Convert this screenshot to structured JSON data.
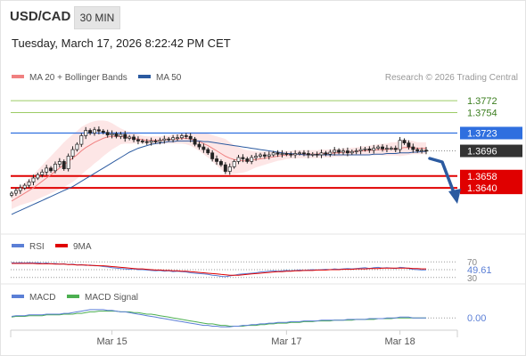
{
  "header": {
    "symbol": "USD/CAD",
    "timeframe": "30 MIN",
    "datetime": "Tuesday, March 17, 2026 8:22:42 PM CET"
  },
  "legend": {
    "bollinger_label": "MA 20 + Bollinger Bands",
    "ma50_label": "MA 50",
    "credit": "Research © 2026 Trading Central"
  },
  "colors": {
    "up_candle": "#ffffff",
    "down_candle": "#222222",
    "ma20": "#f08080",
    "band_fill": "#fde0e0",
    "ma50": "#2b5aa0",
    "resistance": "#9ccc65",
    "pivot": "#2f6fdf",
    "support": "#e00000",
    "current": "#333333",
    "rsi": "#5b7fd6",
    "rsi_ma": "#e00000",
    "macd": "#5b7fd6",
    "macd_signal": "#4caf50"
  },
  "chart_data": {
    "type": "candlestick",
    "ylim": [
      1.3585,
      1.3795
    ],
    "levels": [
      {
        "label": "1.3772",
        "value": 1.3772,
        "kind": "resistance"
      },
      {
        "label": "1.3754",
        "value": 1.3754,
        "kind": "resistance"
      },
      {
        "label": "1.3723",
        "value": 1.3723,
        "kind": "pivot"
      },
      {
        "label": "1.3658",
        "value": 1.3658,
        "kind": "support"
      },
      {
        "label": "1.3640",
        "value": 1.364,
        "kind": "support"
      }
    ],
    "current_price": "1.3696",
    "x_ticks": [
      "Mar 15",
      "Mar 17",
      "Mar 18"
    ],
    "x_tick_index": [
      23,
      63,
      89
    ],
    "close": [
      1.3632,
      1.3636,
      1.364,
      1.3644,
      1.3649,
      1.3655,
      1.366,
      1.3664,
      1.367,
      1.3666,
      1.3676,
      1.368,
      1.3669,
      1.3688,
      1.3698,
      1.3706,
      1.3719,
      1.3727,
      1.3723,
      1.3728,
      1.3726,
      1.3724,
      1.372,
      1.3722,
      1.3718,
      1.3721,
      1.3715,
      1.3717,
      1.3713,
      1.3711,
      1.371,
      1.3709,
      1.3711,
      1.371,
      1.3712,
      1.3714,
      1.3713,
      1.3716,
      1.3716,
      1.3719,
      1.3718,
      1.3714,
      1.3706,
      1.3702,
      1.3698,
      1.3693,
      1.3684,
      1.368,
      1.3675,
      1.3665,
      1.3672,
      1.368,
      1.3686,
      1.3684,
      1.368,
      1.3686,
      1.3688,
      1.369,
      1.3688,
      1.369,
      1.3693,
      1.3691,
      1.3692,
      1.3691,
      1.369,
      1.3692,
      1.3693,
      1.3692,
      1.369,
      1.3691,
      1.369,
      1.3693,
      1.3691,
      1.3694,
      1.3697,
      1.3694,
      1.3696,
      1.3693,
      1.3695,
      1.3696,
      1.3698,
      1.3699,
      1.3697,
      1.37,
      1.3702,
      1.3699,
      1.37,
      1.37,
      1.3698,
      1.3712,
      1.3708,
      1.3702,
      1.3698,
      1.3696,
      1.3697,
      1.3696
    ],
    "ma20": [
      1.362,
      1.3624,
      1.3628,
      1.3632,
      1.3636,
      1.364,
      1.3645,
      1.365,
      1.3655,
      1.366,
      1.3665,
      1.367,
      1.3675,
      1.368,
      1.3685,
      1.369,
      1.3696,
      1.3701,
      1.3705,
      1.3709,
      1.3712,
      1.3715,
      1.3717,
      1.3718,
      1.3718,
      1.3718,
      1.3717,
      1.3716,
      1.3715,
      1.3714,
      1.3713,
      1.3712,
      1.3712,
      1.3712,
      1.3712,
      1.3713,
      1.3713,
      1.3714,
      1.3714,
      1.3715,
      1.3715,
      1.3714,
      1.3712,
      1.371,
      1.3707,
      1.3704,
      1.37,
      1.3696,
      1.3692,
      1.3688,
      1.3685,
      1.3683,
      1.3682,
      1.3681,
      1.3681,
      1.3682,
      1.3683,
      1.3684,
      1.3685,
      1.3686,
      1.3687,
      1.3688,
      1.3689,
      1.369,
      1.369,
      1.3691,
      1.3691,
      1.3691,
      1.3691,
      1.3691,
      1.3691,
      1.3692,
      1.3692,
      1.3692,
      1.3693,
      1.3693,
      1.3694,
      1.3694,
      1.3695,
      1.3695,
      1.3696,
      1.3696,
      1.3697,
      1.3697,
      1.3698,
      1.3698,
      1.3698,
      1.3699,
      1.3699,
      1.37,
      1.3701,
      1.3701,
      1.3701,
      1.37,
      1.37,
      1.37
    ],
    "bb_width": [
      0.0012,
      0.0013,
      0.0014,
      0.0016,
      0.0018,
      0.002,
      0.0022,
      0.0024,
      0.0026,
      0.0028,
      0.003,
      0.0032,
      0.0034,
      0.0035,
      0.0036,
      0.0036,
      0.0036,
      0.0035,
      0.0034,
      0.0032,
      0.003,
      0.0027,
      0.0024,
      0.002,
      0.0016,
      0.0012,
      0.001,
      0.0009,
      0.0008,
      0.0007,
      0.0006,
      0.0006,
      0.0006,
      0.0006,
      0.0006,
      0.0006,
      0.0006,
      0.0007,
      0.0007,
      0.0008,
      0.0009,
      0.001,
      0.0012,
      0.0014,
      0.0016,
      0.0018,
      0.002,
      0.0022,
      0.0024,
      0.0026,
      0.0024,
      0.0022,
      0.002,
      0.0018,
      0.0016,
      0.0014,
      0.0012,
      0.0011,
      0.001,
      0.0009,
      0.0008,
      0.0007,
      0.0007,
      0.0006,
      0.0006,
      0.0006,
      0.0006,
      0.0006,
      0.0006,
      0.0006,
      0.0006,
      0.0006,
      0.0006,
      0.0006,
      0.0006,
      0.0006,
      0.0006,
      0.0006,
      0.0006,
      0.0006,
      0.0007,
      0.0007,
      0.0007,
      0.0008,
      0.0008,
      0.0009,
      0.0009,
      0.001,
      0.001,
      0.0012,
      0.0012,
      0.0011,
      0.001,
      0.0009,
      0.0009,
      0.0009
    ],
    "ma50": [
      1.36,
      1.3603,
      1.3606,
      1.3609,
      1.3612,
      1.3615,
      1.3618,
      1.3621,
      1.3624,
      1.3627,
      1.363,
      1.3633,
      1.3636,
      1.3639,
      1.3642,
      1.3646,
      1.365,
      1.3654,
      1.3658,
      1.3662,
      1.3666,
      1.367,
      1.3674,
      1.3678,
      1.3682,
      1.3686,
      1.369,
      1.3694,
      1.3697,
      1.37,
      1.3702,
      1.3704,
      1.3706,
      1.3707,
      1.3708,
      1.3709,
      1.371,
      1.371,
      1.3711,
      1.3711,
      1.3711,
      1.3711,
      1.3711,
      1.3711,
      1.371,
      1.371,
      1.3709,
      1.3708,
      1.3707,
      1.3706,
      1.3705,
      1.3704,
      1.3703,
      1.3702,
      1.3701,
      1.37,
      1.3699,
      1.3698,
      1.3697,
      1.3696,
      1.3695,
      1.3694,
      1.3693,
      1.3692,
      1.3692,
      1.3691,
      1.3691,
      1.369,
      1.369,
      1.369,
      1.369,
      1.369,
      1.369,
      1.369,
      1.369,
      1.369,
      1.369,
      1.369,
      1.369,
      1.369,
      1.369,
      1.369,
      1.369,
      1.3691,
      1.3691,
      1.3691,
      1.3692,
      1.3692,
      1.3692,
      1.3693,
      1.3693,
      1.3693,
      1.3694,
      1.3694,
      1.3695,
      1.3695
    ],
    "rsi": {
      "label": "RSI",
      "ma_label": "9MA",
      "value_label": "49.61",
      "levels": [
        70,
        50,
        30
      ],
      "level_labels": [
        "70",
        "50",
        "30"
      ],
      "ylim": [
        25,
        75
      ],
      "values": [
        68,
        67,
        68,
        67,
        68,
        67,
        68,
        66,
        67,
        65,
        66,
        64,
        65,
        63,
        64,
        62,
        63,
        61,
        62,
        60,
        60,
        58,
        57,
        55,
        54,
        53,
        52,
        51,
        52,
        50,
        50,
        49,
        48,
        47,
        48,
        46,
        47,
        45,
        46,
        45,
        44,
        42,
        41,
        40,
        39,
        38,
        36,
        35,
        33,
        32,
        34,
        36,
        38,
        39,
        40,
        41,
        42,
        44,
        45,
        46,
        47,
        46,
        47,
        48,
        47,
        48,
        49,
        48,
        49,
        50,
        49,
        50,
        51,
        50,
        52,
        51,
        52,
        53,
        52,
        53,
        54,
        55,
        53,
        55,
        56,
        54,
        55,
        54,
        53,
        56,
        55,
        53,
        51,
        50,
        49,
        49.61
      ],
      "ma_values": [
        66,
        66,
        66,
        66,
        66,
        66,
        65,
        65,
        65,
        65,
        64,
        64,
        64,
        63,
        63,
        62,
        62,
        62,
        61,
        61,
        60,
        60,
        59,
        58,
        57,
        56,
        55,
        54,
        53,
        52,
        52,
        51,
        50,
        49,
        49,
        48,
        48,
        47,
        47,
        46,
        46,
        45,
        44,
        43,
        42,
        41,
        40,
        39,
        38,
        37,
        36,
        36,
        36,
        37,
        38,
        39,
        40,
        41,
        42,
        43,
        44,
        45,
        45,
        46,
        46,
        47,
        47,
        48,
        48,
        48,
        49,
        49,
        49,
        50,
        50,
        50,
        51,
        51,
        51,
        52,
        52,
        52,
        53,
        53,
        53,
        54,
        54,
        54,
        54,
        54,
        54,
        54,
        53,
        53,
        52,
        52
      ]
    },
    "macd": {
      "label": "MACD",
      "signal_label": "MACD Signal",
      "value_label": "0.00",
      "zero_label": "0.00",
      "ylim": [
        -0.0014,
        0.0018
      ],
      "values": [
        0.0002,
        0.0003,
        0.0003,
        0.0003,
        0.0004,
        0.0004,
        0.0004,
        0.0004,
        0.0005,
        0.0005,
        0.0005,
        0.0005,
        0.0006,
        0.0006,
        0.0007,
        0.0008,
        0.0009,
        0.001,
        0.0011,
        0.0011,
        0.0011,
        0.0011,
        0.001,
        0.001,
        0.0009,
        0.0008,
        0.0008,
        0.0007,
        0.0006,
        0.0005,
        0.0004,
        0.0003,
        0.0002,
        0.0001,
        0.0,
        -0.0001,
        -0.0002,
        -0.0003,
        -0.0004,
        -0.0005,
        -0.0006,
        -0.0007,
        -0.0008,
        -0.0009,
        -0.001,
        -0.001,
        -0.0011,
        -0.0011,
        -0.0012,
        -0.0012,
        -0.0012,
        -0.0011,
        -0.0011,
        -0.001,
        -0.001,
        -0.0009,
        -0.0009,
        -0.0008,
        -0.0008,
        -0.0007,
        -0.0007,
        -0.0006,
        -0.0006,
        -0.0006,
        -0.0005,
        -0.0005,
        -0.0005,
        -0.0004,
        -0.0004,
        -0.0004,
        -0.0004,
        -0.0003,
        -0.0003,
        -0.0003,
        -0.0003,
        -0.0003,
        -0.0003,
        -0.0002,
        -0.0002,
        -0.0002,
        -0.0002,
        -0.0002,
        -0.0001,
        -0.0001,
        -0.0001,
        -0.0001,
        0.0,
        0.0,
        0.0,
        0.0001,
        0.0001,
        0.0001,
        0.0,
        0.0,
        0.0,
        0.0
      ],
      "signal": [
        0.0001,
        0.0002,
        0.0002,
        0.0002,
        0.0003,
        0.0003,
        0.0003,
        0.0003,
        0.0004,
        0.0004,
        0.0004,
        0.0004,
        0.0005,
        0.0005,
        0.0005,
        0.0006,
        0.0006,
        0.0007,
        0.0008,
        0.0008,
        0.0009,
        0.0009,
        0.0009,
        0.0009,
        0.0009,
        0.0008,
        0.0008,
        0.0008,
        0.0007,
        0.0007,
        0.0006,
        0.0005,
        0.0005,
        0.0004,
        0.0003,
        0.0002,
        0.0001,
        0.0,
        -0.0001,
        -0.0002,
        -0.0003,
        -0.0004,
        -0.0005,
        -0.0006,
        -0.0007,
        -0.0008,
        -0.0008,
        -0.0009,
        -0.001,
        -0.001,
        -0.0011,
        -0.0011,
        -0.0011,
        -0.0011,
        -0.001,
        -0.001,
        -0.001,
        -0.0009,
        -0.0009,
        -0.0008,
        -0.0008,
        -0.0007,
        -0.0007,
        -0.0007,
        -0.0006,
        -0.0006,
        -0.0006,
        -0.0005,
        -0.0005,
        -0.0005,
        -0.0004,
        -0.0004,
        -0.0004,
        -0.0004,
        -0.0003,
        -0.0003,
        -0.0003,
        -0.0003,
        -0.0003,
        -0.0002,
        -0.0002,
        -0.0002,
        -0.0002,
        -0.0002,
        -0.0001,
        -0.0001,
        -0.0001,
        -0.0001,
        0.0,
        0.0,
        0.0,
        0.0,
        0.0,
        0.0,
        0.0,
        0.0
      ]
    }
  }
}
